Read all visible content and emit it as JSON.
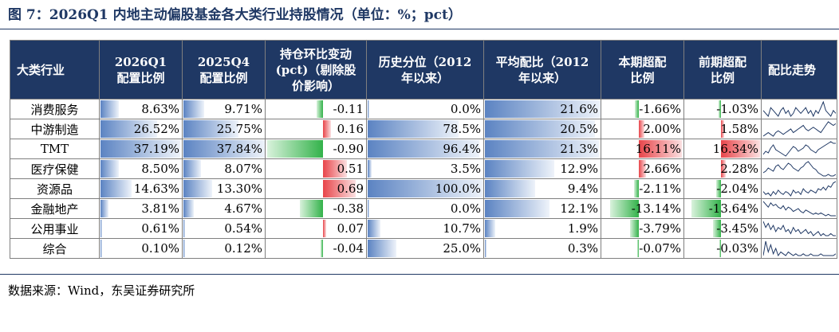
{
  "title": "图 7：2026Q1 内地主动偏股基金各大类行业持股情况（单位：%；pct）",
  "headers": [
    "大类行业",
    "2026Q1\n配置比例",
    "2025Q4\n配置比例",
    "持仓环比变动\n(pct)（剔除股\n价影响）",
    "历史分位（2012\n年以来）",
    "平均配比（2012\n年以来）",
    "本期超配\n比例",
    "前期超配\n比例",
    "配比走势"
  ],
  "colors": {
    "header_bg": "#1f3864",
    "blue_bar": "#5b83c2",
    "pos_bar": "#e8454a",
    "neg_bar": "#33b24a"
  },
  "rows": [
    {
      "name": "消费服务",
      "q1": "8.63%",
      "q1_v": 8.63,
      "q4": "9.71%",
      "q4_v": 9.71,
      "chg": "-0.11",
      "chg_v": -0.11,
      "pct": "0.0%",
      "pct_v": 0.0,
      "avg": "21.6%",
      "avg_v": 21.6,
      "cur_ow": "-1.66%",
      "cur_ow_v": -1.66,
      "prev_ow": "-1.03%",
      "prev_ow_v": -1.03,
      "trend": [
        9,
        8,
        7,
        10,
        9,
        8,
        7,
        9,
        10,
        8,
        9,
        7,
        8,
        10,
        9,
        8,
        9,
        10,
        8,
        9,
        7,
        9,
        8,
        10,
        12,
        9,
        8,
        7,
        9,
        8
      ]
    },
    {
      "name": "中游制造",
      "q1": "26.52%",
      "q1_v": 26.52,
      "q4": "25.75%",
      "q4_v": 25.75,
      "chg": "0.16",
      "chg_v": 0.16,
      "pct": "78.5%",
      "pct_v": 78.5,
      "avg": "20.5%",
      "avg_v": 20.5,
      "cur_ow": "2.00%",
      "cur_ow_v": 2.0,
      "prev_ow": "1.58%",
      "prev_ow_v": 1.58,
      "trend": [
        4,
        5,
        6,
        5,
        4,
        6,
        7,
        6,
        5,
        6,
        7,
        8,
        6,
        7,
        8,
        9,
        10,
        8,
        7,
        8,
        9,
        8,
        7,
        6,
        8,
        10,
        12,
        11,
        10,
        11
      ]
    },
    {
      "name": "TMT",
      "q1": "37.19%",
      "q1_v": 37.19,
      "q4": "37.84%",
      "q4_v": 37.84,
      "chg": "-0.90",
      "chg_v": -0.9,
      "pct": "96.4%",
      "pct_v": 96.4,
      "avg": "21.3%",
      "avg_v": 21.3,
      "cur_ow": "16.11%",
      "cur_ow_v": 16.11,
      "prev_ow": "16.34%",
      "prev_ow_v": 16.34,
      "trend": [
        5,
        7,
        6,
        9,
        11,
        8,
        7,
        6,
        5,
        4,
        6,
        8,
        10,
        9,
        7,
        8,
        9,
        11,
        10,
        8,
        7,
        6,
        8,
        9,
        10,
        11,
        12,
        13,
        12,
        12
      ]
    },
    {
      "name": "医疗保健",
      "q1": "8.50%",
      "q1_v": 8.5,
      "q4": "8.07%",
      "q4_v": 8.07,
      "chg": "0.51",
      "chg_v": 0.51,
      "pct": "3.5%",
      "pct_v": 3.5,
      "avg": "12.9%",
      "avg_v": 12.9,
      "cur_ow": "2.66%",
      "cur_ow_v": 2.66,
      "prev_ow": "2.28%",
      "prev_ow_v": 2.28,
      "trend": [
        6,
        7,
        9,
        8,
        7,
        10,
        11,
        9,
        8,
        10,
        12,
        11,
        9,
        8,
        7,
        9,
        10,
        12,
        13,
        11,
        9,
        8,
        6,
        5,
        4,
        4,
        5,
        4,
        4,
        5
      ]
    },
    {
      "name": "资源品",
      "q1": "14.63%",
      "q1_v": 14.63,
      "q4": "13.30%",
      "q4_v": 13.3,
      "chg": "0.69",
      "chg_v": 0.69,
      "pct": "100.0%",
      "pct_v": 100.0,
      "avg": "9.4%",
      "avg_v": 9.4,
      "cur_ow": "-2.11%",
      "cur_ow_v": -2.11,
      "prev_ow": "-2.04%",
      "prev_ow_v": -2.04,
      "trend": [
        6,
        4,
        5,
        3,
        6,
        4,
        7,
        5,
        4,
        6,
        5,
        3,
        7,
        5,
        6,
        4,
        8,
        6,
        5,
        7,
        6,
        5,
        8,
        7,
        9,
        7,
        10,
        9,
        12,
        13
      ]
    },
    {
      "name": "金融地产",
      "q1": "3.81%",
      "q1_v": 3.81,
      "q4": "4.67%",
      "q4_v": 4.67,
      "chg": "-0.38",
      "chg_v": -0.38,
      "pct": "0.0%",
      "pct_v": 0.0,
      "avg": "12.1%",
      "avg_v": 12.1,
      "cur_ow": "-13.14%",
      "cur_ow_v": -13.14,
      "prev_ow": "-13.64%",
      "prev_ow_v": -13.64,
      "trend": [
        12,
        10,
        8,
        11,
        9,
        10,
        8,
        7,
        9,
        6,
        8,
        7,
        5,
        6,
        7,
        5,
        4,
        6,
        5,
        4,
        3,
        4,
        3,
        4,
        3,
        2,
        3,
        2,
        2,
        2
      ]
    },
    {
      "name": "公用事业",
      "q1": "0.61%",
      "q1_v": 0.61,
      "q4": "0.54%",
      "q4_v": 0.54,
      "chg": "0.07",
      "chg_v": 0.07,
      "pct": "10.7%",
      "pct_v": 10.7,
      "avg": "1.9%",
      "avg_v": 1.9,
      "cur_ow": "-3.79%",
      "cur_ow_v": -3.79,
      "prev_ow": "-3.45%",
      "prev_ow_v": -3.45,
      "trend": [
        10,
        7,
        9,
        6,
        8,
        5,
        7,
        6,
        8,
        5,
        6,
        4,
        7,
        5,
        6,
        4,
        5,
        6,
        4,
        5,
        3,
        4,
        5,
        3,
        4,
        3,
        3,
        4,
        3,
        3
      ]
    },
    {
      "name": "综合",
      "q1": "0.10%",
      "q1_v": 0.1,
      "q4": "0.12%",
      "q4_v": 0.12,
      "chg": "-0.04",
      "chg_v": -0.04,
      "pct": "25.0%",
      "pct_v": 25.0,
      "avg": "0.3%",
      "avg_v": 0.3,
      "cur_ow": "-0.07%",
      "cur_ow_v": -0.07,
      "prev_ow": "-0.03%",
      "prev_ow_v": -0.03,
      "trend": [
        4,
        12,
        6,
        10,
        5,
        8,
        4,
        6,
        5,
        4,
        6,
        5,
        4,
        5,
        4,
        4,
        5,
        4,
        4,
        5,
        4,
        4,
        4,
        5,
        4,
        4,
        4,
        4,
        4,
        5
      ]
    }
  ],
  "source": "数据来源：Wind，东吴证券研究所"
}
